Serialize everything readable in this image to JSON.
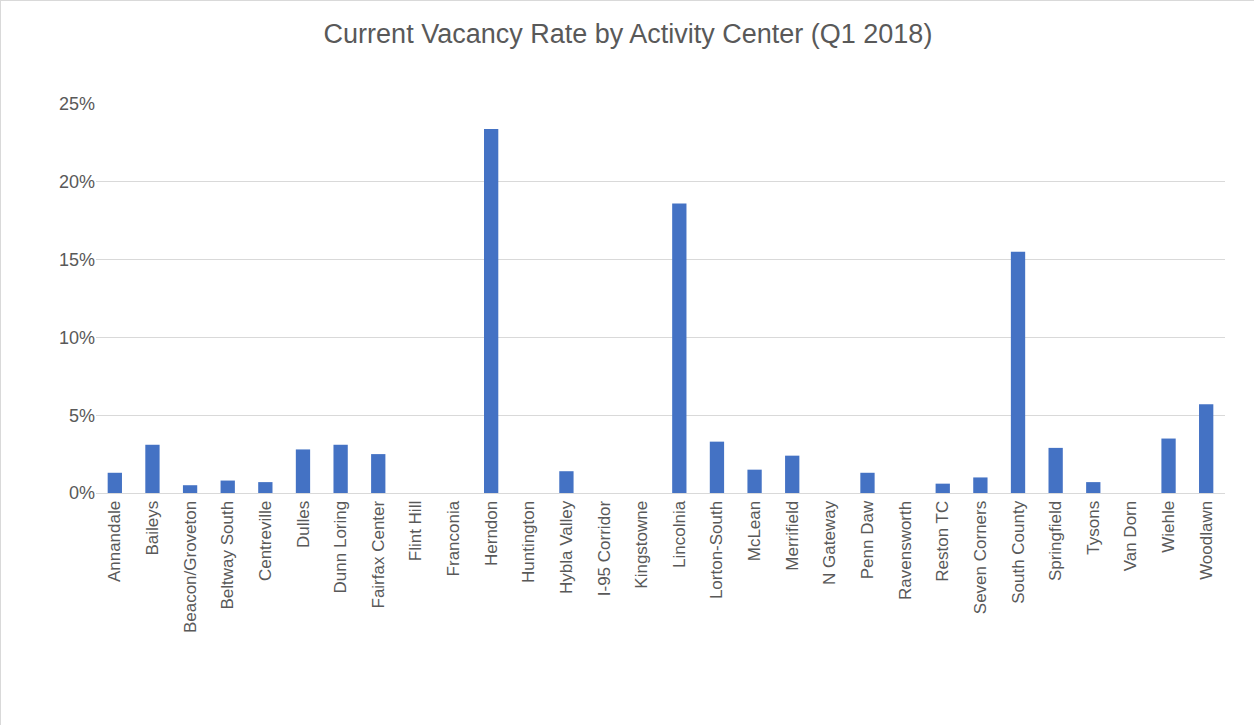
{
  "chart_data": {
    "type": "bar",
    "title": "Current Vacancy Rate by Activity Center (Q1 2018)",
    "categories": [
      "Annandale",
      "Baileys",
      "Beacon/Groveton",
      "Beltway South",
      "Centreville",
      "Dulles",
      "Dunn Loring",
      "Fairfax Center",
      "Flint Hill",
      "Franconia",
      "Herndon",
      "Huntington",
      "Hybla Valley",
      "I-95 Corridor",
      "Kingstowne",
      "Lincolnia",
      "Lorton-South",
      "McLean",
      "Merrifield",
      "N Gateway",
      "Penn Daw",
      "Ravensworth",
      "Reston TC",
      "Seven Corners",
      "South County",
      "Springfield",
      "Tysons",
      "Van Dorn",
      "Wiehle",
      "Woodlawn"
    ],
    "values": [
      1.3,
      3.1,
      0.5,
      0.8,
      0.7,
      2.8,
      3.1,
      2.5,
      0,
      0,
      23.4,
      0,
      1.4,
      0,
      0,
      18.6,
      3.3,
      1.5,
      2.4,
      0,
      1.3,
      0,
      0.6,
      1.0,
      15.5,
      2.9,
      0.7,
      0,
      3.5,
      5.7
    ],
    "color": "#4472c4",
    "ylim": [
      0,
      25
    ],
    "yticks": [
      {
        "value": 0,
        "label": "0%"
      },
      {
        "value": 5,
        "label": "5%"
      },
      {
        "value": 10,
        "label": "10%"
      },
      {
        "value": 15,
        "label": "15%"
      },
      {
        "value": 20,
        "label": "20%"
      },
      {
        "value": 25,
        "label": "25%"
      }
    ],
    "grid": true
  }
}
